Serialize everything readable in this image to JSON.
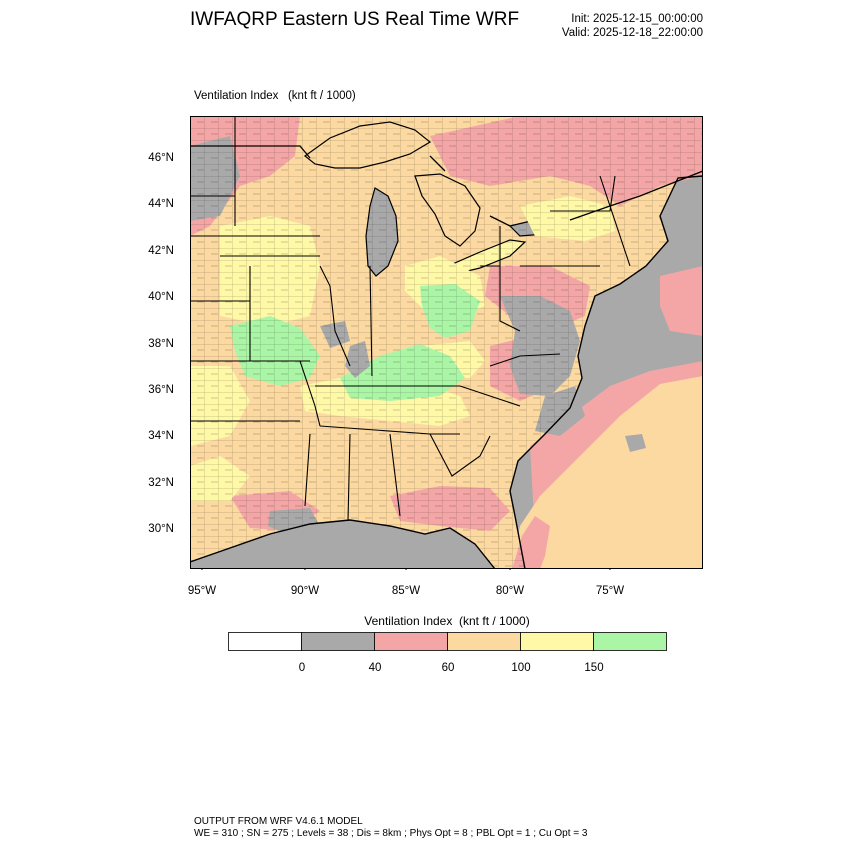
{
  "header": {
    "title": "IWFAQRP Eastern US Real Time WRF",
    "init": "Init: 2025-12-15_00:00:00",
    "valid": "Valid: 2025-12-18_22:00:00"
  },
  "map": {
    "field_label": "Ventilation Index   (knt ft / 1000)",
    "lat_labels": [
      "46°N",
      "44°N",
      "42°N",
      "40°N",
      "38°N",
      "36°N",
      "34°N",
      "32°N",
      "30°N"
    ],
    "lon_labels": [
      "95°W",
      "90°W",
      "85°W",
      "80°W",
      "75°W"
    ],
    "colors": {
      "ocean": "#a9a9a9",
      "low": "#a9a9a9",
      "pink": "#f4a6a6",
      "tan": "#fbd9a0",
      "yellow": "#fff8a6",
      "green": "#aaf6a6"
    }
  },
  "legend": {
    "title": "Ventilation Index  (knt ft / 1000)",
    "colors": [
      "#ffffff",
      "#a9a9a9",
      "#f4a6a6",
      "#fbd9a0",
      "#fff8a6",
      "#aaf6a6"
    ],
    "labels": [
      "0",
      "40",
      "60",
      "100",
      "150"
    ]
  },
  "footer": {
    "line1": "OUTPUT FROM WRF V4.6.1 MODEL",
    "line2": "WE = 310 ; SN = 275 ; Levels = 38 ; Dis = 8km ; Phys Opt = 8 ; PBL Opt = 1 ; Cu Opt = 3"
  }
}
